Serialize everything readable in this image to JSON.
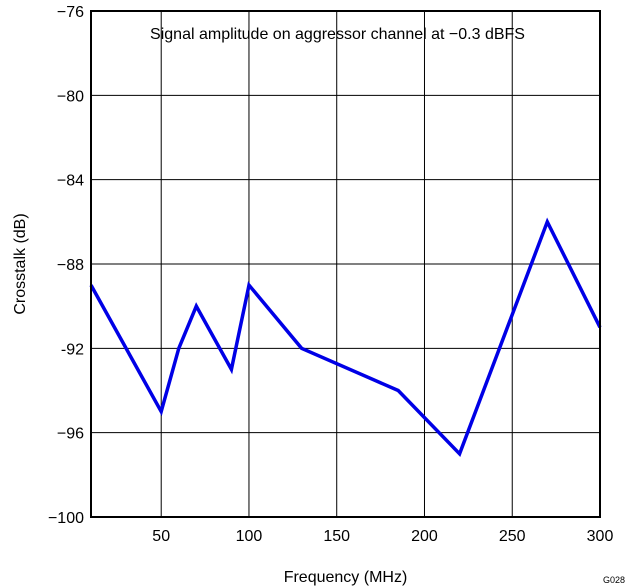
{
  "chart_data": {
    "type": "line",
    "title": "",
    "annotation": "Signal amplitude on aggressor channel at −0.3 dBFS",
    "xlabel": "Frequency (MHz)",
    "ylabel": "Crosstalk (dB)",
    "xlim": [
      10,
      300
    ],
    "ylim": [
      -100,
      -76
    ],
    "xticks": [
      50,
      100,
      150,
      200,
      250,
      300
    ],
    "xtick_labels": [
      "50",
      "100",
      "150",
      "200",
      "250",
      "300"
    ],
    "yticks": [
      -100,
      -96,
      -92,
      -88,
      -84,
      -80,
      -76
    ],
    "ytick_labels": [
      "−100",
      "−96",
      "-92",
      "−88",
      "−84",
      "−80",
      "−76"
    ],
    "grid": true,
    "figure_id": "G028",
    "series": [
      {
        "color": "#0000e6",
        "x": [
          10,
          50,
          60,
          70,
          90,
          100,
          130,
          185,
          220,
          270,
          300
        ],
        "y": [
          -89,
          -95,
          -92,
          -90,
          -93,
          -89,
          -92,
          -94,
          -97,
          -86,
          -91
        ]
      }
    ]
  }
}
